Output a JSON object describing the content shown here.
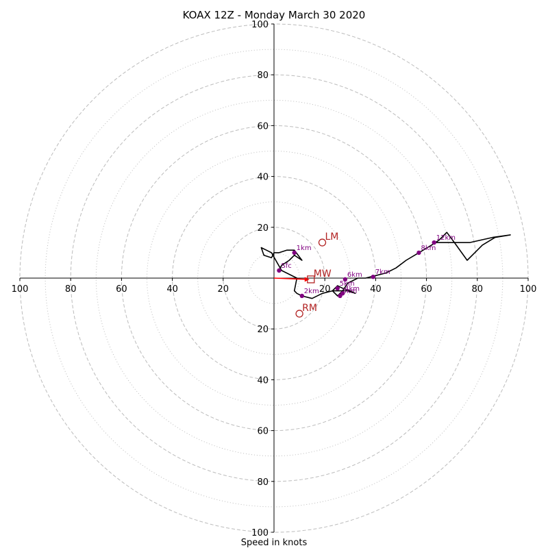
{
  "chart_data": {
    "type": "scatter",
    "title": "KOAX 12Z - Monday March 30 2020",
    "xlabel": "Speed in knots",
    "xlim": [
      -100,
      100
    ],
    "ylim": [
      -100,
      100
    ],
    "ring_values": [
      20,
      40,
      60,
      80,
      100
    ],
    "minor_ring_values": [
      10,
      30,
      50,
      70,
      90
    ],
    "tick_labels": [
      "100",
      "80",
      "60",
      "40",
      "20",
      "20",
      "40",
      "60",
      "80",
      "100"
    ],
    "hodograph_trace": [
      [
        2,
        3
      ],
      [
        3,
        5
      ],
      [
        6,
        7
      ],
      [
        8,
        9
      ],
      [
        11,
        7
      ],
      [
        8,
        11
      ],
      [
        5,
        11
      ],
      [
        2,
        10
      ],
      [
        0,
        10
      ],
      [
        -1,
        8
      ],
      [
        -4,
        9
      ],
      [
        -5,
        12
      ],
      [
        -3,
        11
      ],
      [
        -1,
        10
      ],
      [
        3,
        3
      ],
      [
        9,
        0
      ],
      [
        8,
        -5
      ],
      [
        9,
        -6
      ],
      [
        11,
        -7
      ],
      [
        15,
        -8
      ],
      [
        19,
        -6
      ],
      [
        23,
        -5
      ],
      [
        26,
        -5
      ],
      [
        29,
        -5
      ],
      [
        32,
        -6
      ],
      [
        30,
        -5
      ],
      [
        27,
        -4
      ],
      [
        25,
        -3
      ],
      [
        23,
        -5
      ],
      [
        25,
        -7
      ],
      [
        27,
        -5
      ],
      [
        29,
        -2
      ],
      [
        33,
        0
      ],
      [
        36,
        0
      ],
      [
        40,
        1
      ],
      [
        44,
        2
      ],
      [
        48,
        4
      ],
      [
        52,
        7
      ],
      [
        57,
        10
      ],
      [
        62,
        13
      ],
      [
        65,
        15
      ],
      [
        68,
        18
      ],
      [
        71,
        14
      ],
      [
        76,
        7
      ],
      [
        79,
        10
      ],
      [
        82,
        13
      ],
      [
        87,
        16
      ],
      [
        93,
        17
      ],
      [
        86,
        16
      ],
      [
        77,
        14
      ],
      [
        68,
        14
      ],
      [
        63,
        14
      ]
    ],
    "height_markers": [
      {
        "label": "Sfc",
        "x": 2,
        "y": 3
      },
      {
        "label": "1km",
        "x": 8,
        "y": 10
      },
      {
        "label": "2km",
        "x": 11,
        "y": -7
      },
      {
        "label": "3km",
        "x": 26,
        "y": -7
      },
      {
        "label": "4km",
        "x": 27,
        "y": -6
      },
      {
        "label": "5km",
        "x": 25,
        "y": -4
      },
      {
        "label": "6km",
        "x": 28,
        "y": -0.5
      },
      {
        "label": "7km",
        "x": 39,
        "y": 0.5
      },
      {
        "label": "8km",
        "x": 57,
        "y": 10
      },
      {
        "label": "12km",
        "x": 63,
        "y": 14
      }
    ],
    "storm_motion": [
      {
        "label": "LM",
        "x": 19,
        "y": 14,
        "marker": "circle"
      },
      {
        "label": "RM",
        "x": 10,
        "y": -14,
        "marker": "circle"
      },
      {
        "label": "MW",
        "x": 14.5,
        "y": -0.5,
        "marker": "square"
      }
    ],
    "mean_wind_vector": {
      "x": 14.5,
      "y": -0.5
    },
    "colors": {
      "trace": "#000000",
      "markers": "#800080",
      "motion": "#b22222",
      "vector": "#ff0000",
      "rings": "#bbbbbb"
    }
  }
}
